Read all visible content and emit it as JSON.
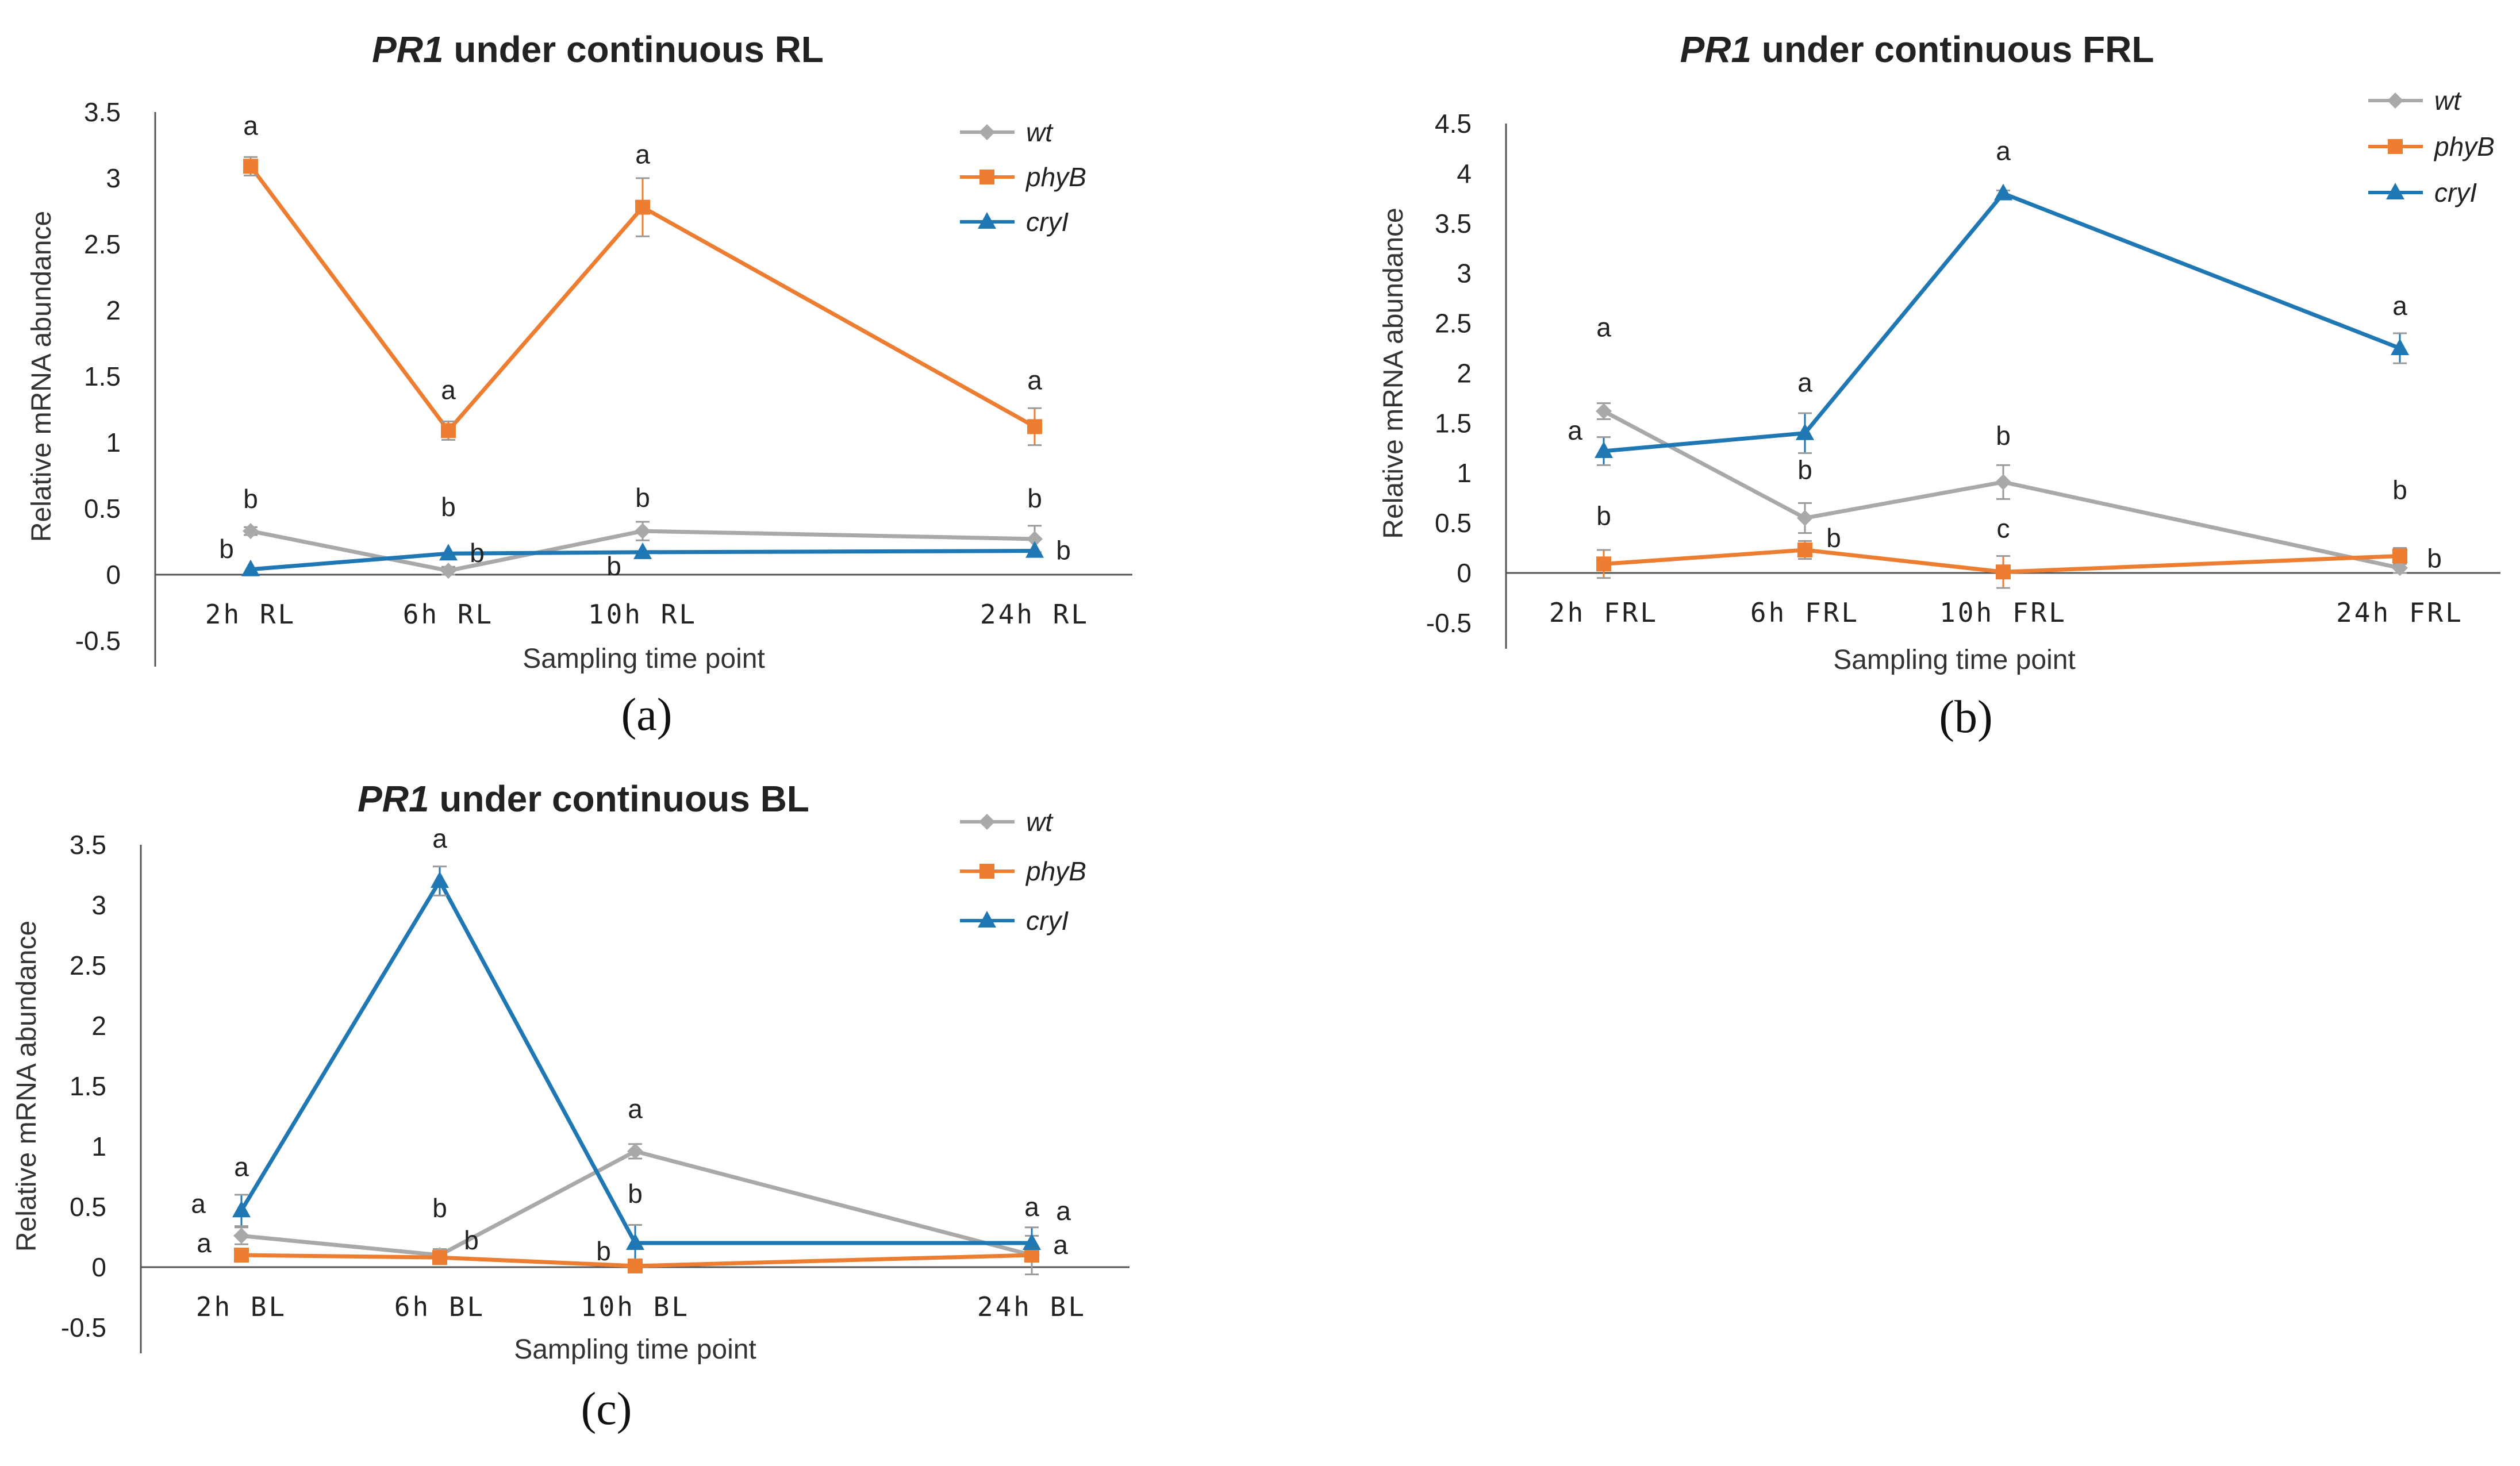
{
  "colors": {
    "wt": "#a9a9a9",
    "phyB": "#ed7d31",
    "cryI": "#1f77b4",
    "axis": "#555555"
  },
  "chart_data": [
    {
      "type": "line",
      "panel_label": "(a)",
      "title_gene": "PR1",
      "title_rest": " under continuous RL",
      "xlabel": "Sampling time point",
      "ylabel": "Relative mRNA abundance",
      "ylim": [
        -0.5,
        3.5
      ],
      "yticks": [
        "-0.5",
        "0",
        "0.5",
        "1",
        "1.5",
        "2",
        "2.5",
        "3",
        "3.5"
      ],
      "categories": [
        "2h RL",
        "6h RL",
        "10h RL",
        "24h RL"
      ],
      "series": [
        {
          "name": "wt",
          "values": [
            0.33,
            0.03,
            0.33,
            0.27
          ],
          "errors": [
            0.03,
            0.03,
            0.07,
            0.1
          ],
          "labels": [
            "b",
            "b",
            "b",
            "b"
          ]
        },
        {
          "name": "phyB",
          "values": [
            3.09,
            1.09,
            2.78,
            1.12
          ],
          "errors": [
            0.07,
            0.07,
            0.22,
            0.14
          ],
          "labels": [
            "a",
            "a",
            "a",
            "a"
          ]
        },
        {
          "name": "cryI",
          "values": [
            0.04,
            0.16,
            0.17,
            0.18
          ],
          "errors": [
            0.0,
            0.0,
            0.0,
            0.0
          ],
          "labels": [
            "b",
            "b",
            "b",
            "b"
          ]
        }
      ]
    },
    {
      "type": "line",
      "panel_label": "(b)",
      "title_gene": "PR1",
      "title_rest": " under continuous FRL",
      "xlabel": "Sampling time point",
      "ylabel": "Relative mRNA abundance",
      "ylim": [
        -0.5,
        4.5
      ],
      "yticks": [
        "-0.5",
        "0",
        "0.5",
        "1",
        "1.5",
        "2",
        "2.5",
        "3",
        "3.5",
        "4",
        "4.5"
      ],
      "categories": [
        "2h FRL",
        "6h FRL",
        "10h FRL",
        "24h FRL"
      ],
      "series": [
        {
          "name": "wt",
          "values": [
            1.62,
            0.55,
            0.91,
            0.05
          ],
          "errors": [
            0.08,
            0.15,
            0.17,
            0.05
          ],
          "labels": [
            "a",
            "b",
            "b",
            "b"
          ]
        },
        {
          "name": "phyB",
          "values": [
            0.09,
            0.23,
            0.01,
            0.17
          ],
          "errors": [
            0.14,
            0.09,
            0.16,
            0.08
          ],
          "labels": [
            "b",
            "b",
            "c",
            "b"
          ]
        },
        {
          "name": "cryI",
          "values": [
            1.22,
            1.4,
            3.8,
            2.25
          ],
          "errors": [
            0.14,
            0.2,
            0.03,
            0.15
          ],
          "labels": [
            "a",
            "a",
            "a",
            "a"
          ]
        }
      ]
    },
    {
      "type": "line",
      "panel_label": "(c)",
      "title_gene": "PR1",
      "title_rest": " under continuous BL",
      "xlabel": "Sampling time point",
      "ylabel": "Relative mRNA abundance",
      "ylim": [
        -0.5,
        3.5
      ],
      "yticks": [
        "-0.5",
        "0",
        "0.5",
        "1",
        "1.5",
        "2",
        "2.5",
        "3",
        "3.5"
      ],
      "categories": [
        "2h BL",
        "6h BL",
        "10h BL",
        "24h BL"
      ],
      "series": [
        {
          "name": "wt",
          "values": [
            0.26,
            0.1,
            0.96,
            0.1
          ],
          "errors": [
            0.07,
            0.05,
            0.06,
            0.16
          ],
          "labels": [
            "a",
            "b",
            "a",
            "a"
          ]
        },
        {
          "name": "phyB",
          "values": [
            0.1,
            0.08,
            0.01,
            0.1
          ],
          "errors": [
            0.04,
            0.04,
            0.02,
            0.03
          ],
          "labels": [
            "a",
            "b",
            "b",
            "a"
          ]
        },
        {
          "name": "cryI",
          "values": [
            0.47,
            3.2,
            0.2,
            0.2
          ],
          "errors": [
            0.13,
            0.12,
            0.15,
            0.13
          ],
          "labels": [
            "a",
            "a",
            "b",
            "a"
          ]
        }
      ]
    }
  ]
}
